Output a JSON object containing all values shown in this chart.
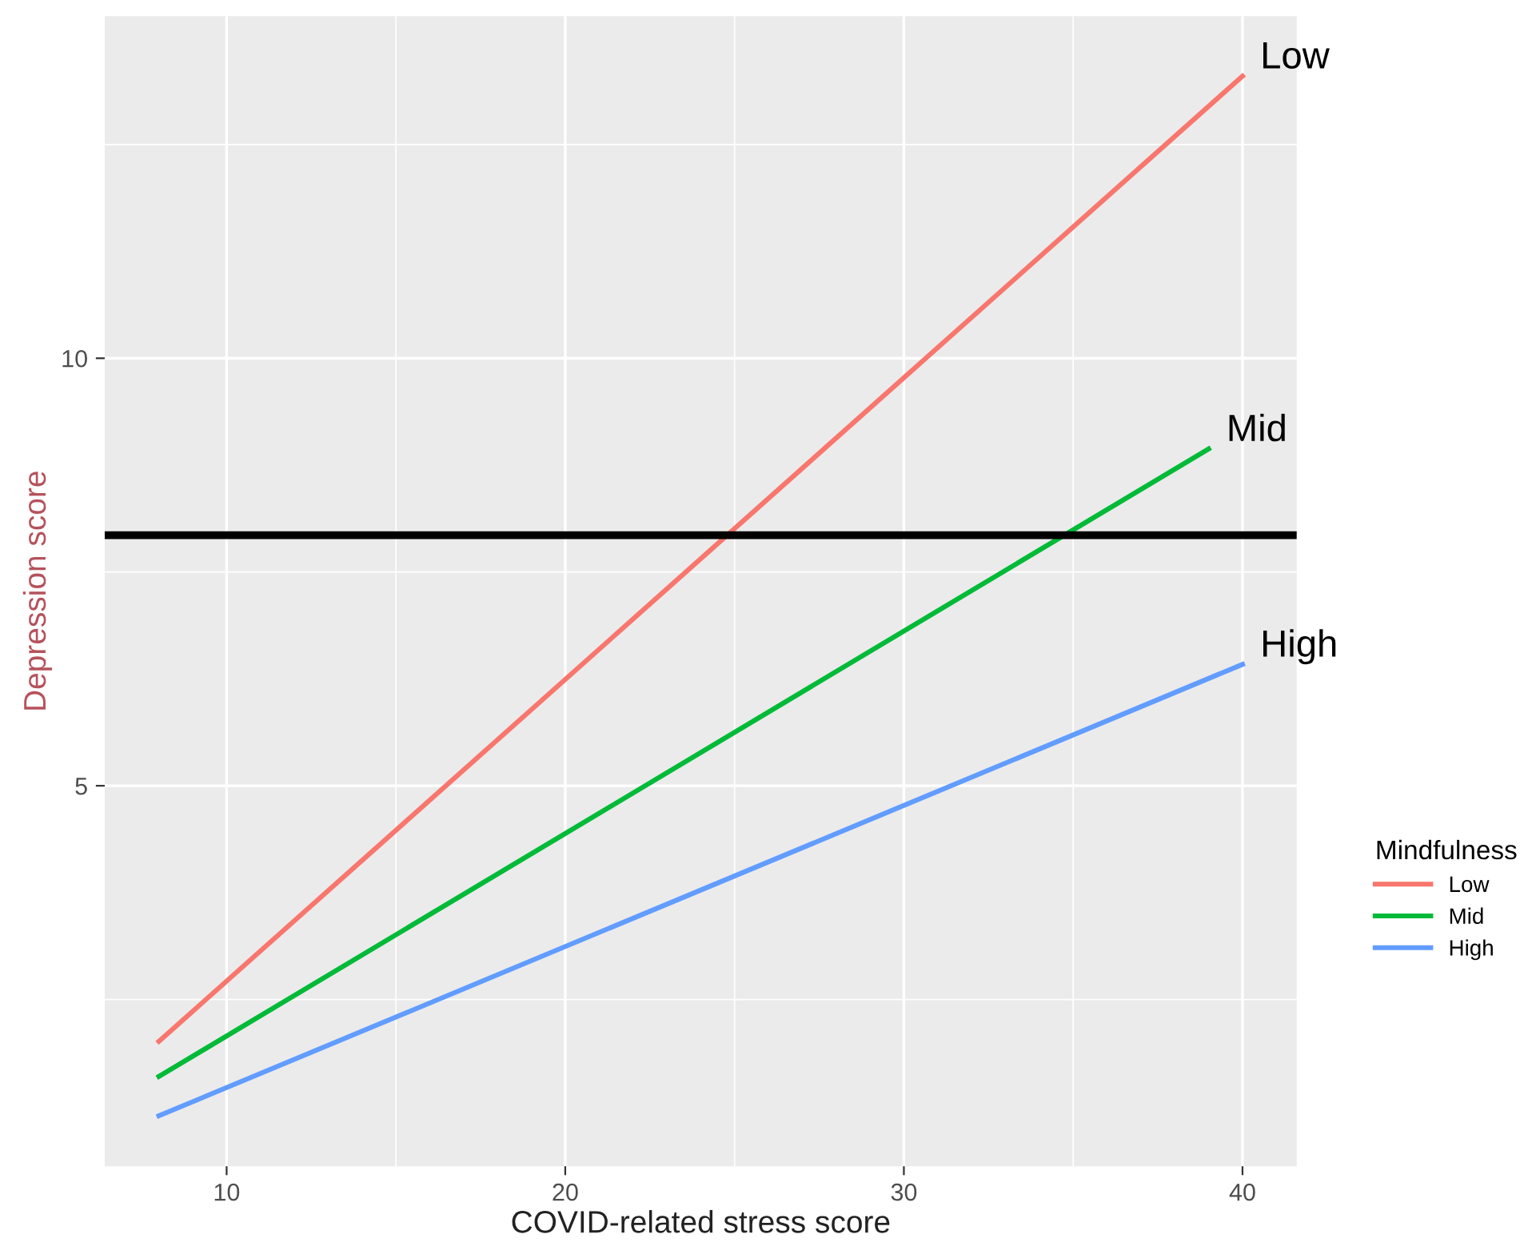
{
  "chart_data": {
    "type": "line",
    "xlabel": "COVID-related stress score",
    "ylabel": "Depression score",
    "legend_title": "Mindfulness",
    "series": [
      {
        "name": "Low",
        "color": "#f8766d",
        "x": [
          8,
          40
        ],
        "values": [
          2.01,
          13.3
        ]
      },
      {
        "name": "Mid",
        "color": "#00ba38",
        "x": [
          8,
          39
        ],
        "values": [
          1.6,
          8.94
        ]
      },
      {
        "name": "High",
        "color": "#619cff",
        "x": [
          8,
          40
        ],
        "values": [
          1.14,
          6.42
        ]
      }
    ],
    "ref_lines": [
      {
        "axis": "y",
        "value": 7.93,
        "color": "#000000"
      }
    ],
    "xlim": [
      6.4,
      41.6
    ],
    "ylim": [
      0.55,
      14
    ],
    "xticks": [
      10,
      20,
      30,
      40
    ],
    "yticks": [
      5,
      10
    ],
    "grid": true,
    "legend": "right",
    "line_style": "solid",
    "marker": "none"
  }
}
